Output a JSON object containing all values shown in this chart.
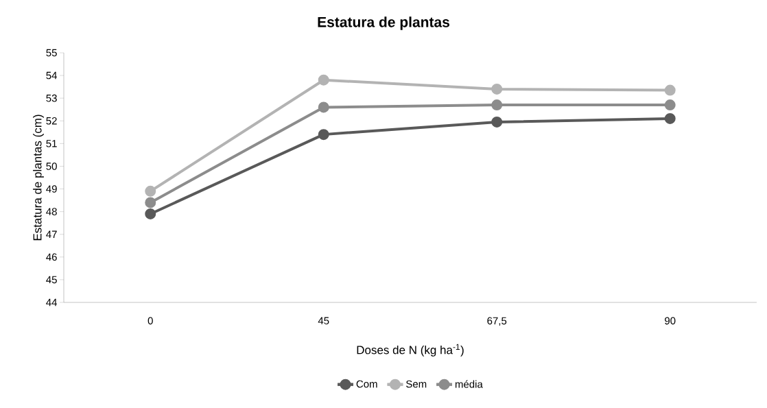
{
  "chart_data": {
    "type": "line",
    "title": "Estatura de plantas",
    "xlabel": "Doses de N (kg ha$^{-1}$)",
    "ylabel": "Estatura de plantas (cm)",
    "categories": [
      "0",
      "45",
      "67,5",
      "90"
    ],
    "series": [
      {
        "name": "Com",
        "color": "#595959",
        "values": [
          47.9,
          51.4,
          51.95,
          52.1
        ]
      },
      {
        "name": "Sem",
        "color": "#b3b3b3",
        "values": [
          48.9,
          53.8,
          53.4,
          53.35
        ]
      },
      {
        "name": "média",
        "color": "#8c8c8c",
        "values": [
          48.4,
          52.6,
          52.7,
          52.7
        ]
      }
    ],
    "ylim": [
      44,
      55
    ],
    "yticks": [
      44,
      45,
      46,
      47,
      48,
      49,
      50,
      51,
      52,
      53,
      54,
      55
    ],
    "grid": false,
    "legend": "bottom",
    "marker": "circle",
    "line_style": "solid"
  }
}
